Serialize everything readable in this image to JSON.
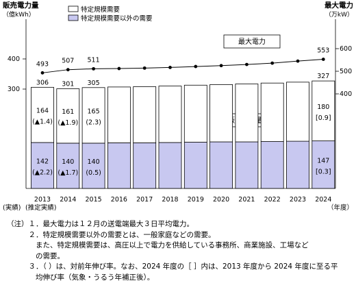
{
  "chart_data": {
    "type": "bar",
    "title": "",
    "left_axis": {
      "label_line1": "販売電力量",
      "label_line2": "（億kWh）",
      "ticks": [
        "300",
        "400"
      ]
    },
    "right_axis": {
      "label_line1": "最大電力",
      "label_line2": "（万kW）",
      "ticks": [
        "400",
        "500",
        "600"
      ]
    },
    "categories": [
      "2013",
      "2014",
      "2015",
      "2016",
      "2017",
      "2018",
      "2019",
      "2020",
      "2021",
      "2022",
      "2023",
      "2024"
    ],
    "x_sublabels": [
      "(実績)",
      "(推定実績)"
    ],
    "x_unit_label": "（年度）",
    "series": [
      {
        "name": "特定規模需要以外の需要",
        "color": "#c8c8f0",
        "values": [
          142,
          140,
          140,
          141,
          141,
          142,
          143,
          144,
          144,
          145,
          146,
          147
        ],
        "value_labels": [
          "142",
          "140",
          "140",
          "",
          "",
          "",
          "",
          "",
          "",
          "",
          "",
          "147"
        ],
        "change_labels": [
          "(▲2.2)",
          "(▲1.7)",
          "(0.5)",
          "",
          "",
          "",
          "",
          "",
          "",
          "",
          "",
          "[0.3]"
        ]
      },
      {
        "name": "特定規模需要",
        "color": "#ffffff",
        "values": [
          164,
          161,
          165,
          166,
          167,
          168,
          170,
          171,
          173,
          175,
          177,
          180
        ],
        "value_labels": [
          "164",
          "161",
          "165",
          "",
          "",
          "",
          "",
          "",
          "",
          "",
          "",
          "180"
        ],
        "change_labels": [
          "(▲1.4)",
          "(▲1.9)",
          "(2.3)",
          "",
          "",
          "",
          "",
          "",
          "",
          "",
          "",
          "[0.9]"
        ]
      }
    ],
    "totals": [
      306,
      301,
      305,
      307,
      308,
      310,
      313,
      315,
      317,
      320,
      323,
      327
    ],
    "total_labels": [
      "306",
      "301",
      "305",
      "",
      "",
      "",
      "",
      "",
      "",
      "",
      "",
      "327"
    ],
    "line": {
      "name": "最大電力",
      "values": [
        493,
        507,
        511,
        512,
        514,
        517,
        521,
        525,
        530,
        536,
        545,
        553
      ],
      "value_labels": [
        "493",
        "507",
        "511",
        "",
        "",
        "",
        "",
        "",
        "",
        "",
        "",
        "553"
      ]
    },
    "legend": [
      "特定規模需要",
      "特定規模需要以外の需要"
    ],
    "callouts": {
      "peak": "最大電力",
      "sales": "販売電力量"
    }
  },
  "notes": [
    "（注）１．最大電力は１２月の送電端最大３日平均電力。",
    "　　　２．特定規模需要以外の需要とは、一般家庭などの需要。",
    "　　　　また、特定規模需要は、高圧以上で電力を供給している事務所、商業施設、工場など",
    "　　　　の需要。",
    "　　　３．（ ）は、対前年伸び率。なお、2024 年度の［ ］内は、2013 年度から 2024 年度に至る平",
    "　　　　均伸び率（気象・うるう年補正後）。"
  ]
}
